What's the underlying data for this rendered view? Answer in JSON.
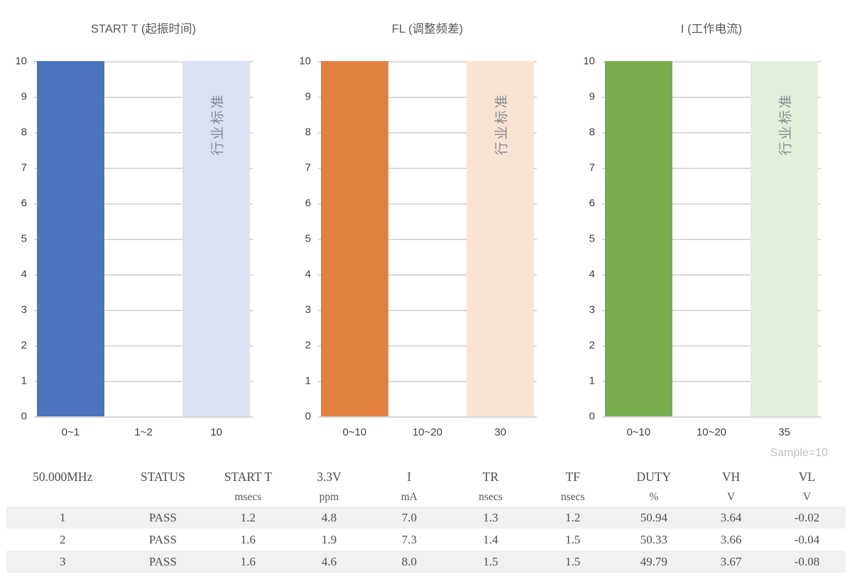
{
  "sample_label": "Sample=10",
  "colors": {
    "accent_blue": "#4B73BE",
    "light_blue": "#DBE1F1",
    "accent_orange": "#E2813F",
    "light_orange": "#F9E4D3",
    "accent_green": "#79AC4E",
    "light_green": "#E3EFDA",
    "gridline": "#D9D9D9",
    "row_stripe": "#F1F1F1",
    "title_text": "#595959",
    "sample_text": "#C0C0C4"
  },
  "chart_data": [
    {
      "type": "bar",
      "title": "START T (起振时间)",
      "categories": [
        "0~1",
        "1~2",
        "10"
      ],
      "values": [
        10,
        0,
        10
      ],
      "bar_colors": [
        "#4B73BE",
        "#4B73BE",
        "#DBE1F1"
      ],
      "annotation": {
        "text": "行业标准",
        "category_index": 2
      },
      "xlabel": "",
      "ylabel": "",
      "ylim": [
        0,
        10
      ],
      "ytick_step": 1,
      "grid": true,
      "legend": false
    },
    {
      "type": "bar",
      "title": "FL (调整频差)",
      "categories": [
        "0~10",
        "10~20",
        "30"
      ],
      "values": [
        10,
        0,
        10
      ],
      "bar_colors": [
        "#E2813F",
        "#E2813F",
        "#F9E4D3"
      ],
      "annotation": {
        "text": "行业标准",
        "category_index": 2
      },
      "xlabel": "",
      "ylabel": "",
      "ylim": [
        0,
        10
      ],
      "ytick_step": 1,
      "grid": true,
      "legend": false
    },
    {
      "type": "bar",
      "title": "I (工作电流)",
      "categories": [
        "0~10",
        "10~20",
        "35"
      ],
      "values": [
        10,
        0,
        10
      ],
      "bar_colors": [
        "#79AC4E",
        "#79AC4E",
        "#E3EFDA"
      ],
      "annotation": {
        "text": "行业标准",
        "category_index": 2
      },
      "xlabel": "",
      "ylabel": "",
      "ylim": [
        0,
        10
      ],
      "ytick_step": 1,
      "grid": true,
      "legend": false
    }
  ],
  "table": {
    "columns": [
      {
        "label": "50.000MHz",
        "unit": ""
      },
      {
        "label": "STATUS",
        "unit": ""
      },
      {
        "label": "START T",
        "unit": "msecs"
      },
      {
        "label": "3.3V",
        "unit": "ppm"
      },
      {
        "label": "I",
        "unit": "mA"
      },
      {
        "label": "TR",
        "unit": "nsecs"
      },
      {
        "label": "TF",
        "unit": "nsecs"
      },
      {
        "label": "DUTY",
        "unit": "%"
      },
      {
        "label": "VH",
        "unit": "V"
      },
      {
        "label": "VL",
        "unit": "V"
      }
    ],
    "col_widths_pct": [
      13.4,
      10.5,
      9.8,
      9.5,
      9.6,
      9.8,
      9.8,
      9.5,
      8.9,
      9.2
    ],
    "rows": [
      [
        "1",
        "PASS",
        "1.2",
        "4.8",
        "7.0",
        "1.3",
        "1.2",
        "50.94",
        "3.64",
        "-0.02"
      ],
      [
        "2",
        "PASS",
        "1.6",
        "1.9",
        "7.3",
        "1.4",
        "1.5",
        "50.33",
        "3.66",
        "-0.04"
      ],
      [
        "3",
        "PASS",
        "1.6",
        "4.6",
        "8.0",
        "1.5",
        "1.5",
        "49.79",
        "3.67",
        "-0.08"
      ]
    ]
  }
}
